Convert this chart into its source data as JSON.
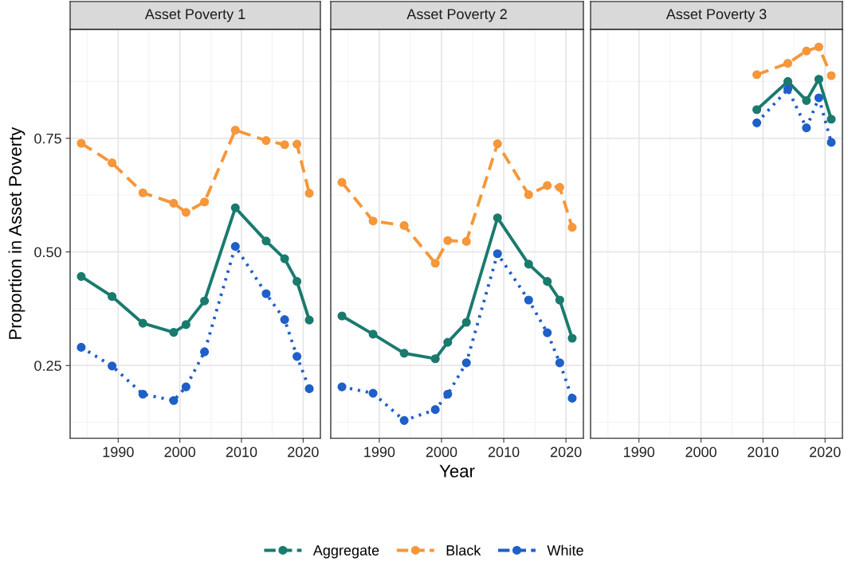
{
  "chart_data": [
    {
      "type": "line",
      "title": "Asset Poverty 1",
      "ylabel": "Proportion in Asset Poverty",
      "xlim": [
        1982.2,
        2022.8
      ],
      "ylim": [
        0.09,
        0.99
      ],
      "xticks": [
        1990,
        2000,
        2010,
        2020
      ],
      "yticks": [
        0.25,
        {
          "value": 0.5,
          "label": "0.50"
        },
        0.75
      ],
      "grid": true,
      "legend": "bottom",
      "marker": "circle",
      "series": [
        {
          "name": "Aggregate",
          "color": "#1a7a6e",
          "line_style": "solid",
          "x": [
            1984,
            1989,
            1994,
            1999,
            2001,
            2004,
            2009,
            2014,
            2017,
            2019,
            2021
          ],
          "values": [
            0.446,
            0.402,
            0.343,
            0.323,
            0.34,
            0.392,
            0.597,
            0.524,
            0.485,
            0.435,
            0.35
          ]
        },
        {
          "name": "Black",
          "color": "#f5973a",
          "line_style": "dashed",
          "x": [
            1984,
            1989,
            1994,
            1999,
            2001,
            2004,
            2009,
            2014,
            2017,
            2019,
            2021
          ],
          "values": [
            0.739,
            0.696,
            0.63,
            0.607,
            0.587,
            0.61,
            0.768,
            0.745,
            0.736,
            0.737,
            0.629
          ]
        },
        {
          "name": "White",
          "color": "#1f5fc8",
          "line_style": "dotted",
          "x": [
            1984,
            1989,
            1994,
            1999,
            2001,
            2004,
            2009,
            2014,
            2017,
            2019,
            2021
          ],
          "values": [
            0.29,
            0.249,
            0.187,
            0.173,
            0.203,
            0.28,
            0.512,
            0.408,
            0.351,
            0.27,
            0.199
          ]
        }
      ]
    },
    {
      "type": "line",
      "title": "Asset Poverty 2",
      "xlabel": "Year",
      "xlim": [
        1982.2,
        2022.8
      ],
      "ylim": [
        0.09,
        0.99
      ],
      "xticks": [
        1990,
        2000,
        2010,
        2020
      ],
      "yticks": [
        0.25,
        0.5,
        0.75
      ],
      "tick_labels": "x",
      "grid": true,
      "marker": "circle",
      "series": [
        {
          "color": "#1a7a6e",
          "line_style": "solid",
          "x": [
            1984,
            1989,
            1994,
            1999,
            2001,
            2004,
            2009,
            2014,
            2017,
            2019,
            2021
          ],
          "values": [
            0.359,
            0.319,
            0.277,
            0.265,
            0.301,
            0.345,
            0.575,
            0.473,
            0.435,
            0.394,
            0.31
          ]
        },
        {
          "color": "#f5973a",
          "line_style": "dashed",
          "x": [
            1984,
            1989,
            1994,
            1999,
            2001,
            2004,
            2009,
            2014,
            2017,
            2019,
            2021
          ],
          "values": [
            0.653,
            0.568,
            0.558,
            0.475,
            0.525,
            0.523,
            0.738,
            0.626,
            0.646,
            0.642,
            0.554
          ]
        },
        {
          "color": "#1f5fc8",
          "line_style": "dotted",
          "x": [
            1984,
            1989,
            1994,
            1999,
            2001,
            2004,
            2009,
            2014,
            2017,
            2019,
            2021
          ],
          "values": [
            0.203,
            0.189,
            0.129,
            0.153,
            0.187,
            0.256,
            0.496,
            0.394,
            0.322,
            0.256,
            0.178
          ]
        }
      ]
    },
    {
      "type": "line",
      "title": "Asset Poverty 3",
      "xlim": [
        1982.2,
        2022.8
      ],
      "ylim": [
        0.09,
        0.99
      ],
      "xticks": [
        1990,
        2000,
        2010,
        2020
      ],
      "yticks": [
        0.25,
        0.5,
        0.75
      ],
      "tick_labels": "x",
      "grid": true,
      "marker": "circle",
      "series": [
        {
          "color": "#1a7a6e",
          "line_style": "solid",
          "x": [
            2009,
            2014,
            2017,
            2019,
            2021
          ],
          "values": [
            0.813,
            0.875,
            0.833,
            0.88,
            0.792
          ]
        },
        {
          "color": "#f5973a",
          "line_style": "dashed",
          "x": [
            2009,
            2014,
            2017,
            2019,
            2021
          ],
          "values": [
            0.89,
            0.915,
            0.942,
            0.951,
            0.888
          ]
        },
        {
          "color": "#1f5fc8",
          "line_style": "dotted",
          "x": [
            2009,
            2014,
            2017,
            2019,
            2021
          ],
          "values": [
            0.784,
            0.858,
            0.773,
            0.839,
            0.741
          ]
        }
      ]
    }
  ]
}
